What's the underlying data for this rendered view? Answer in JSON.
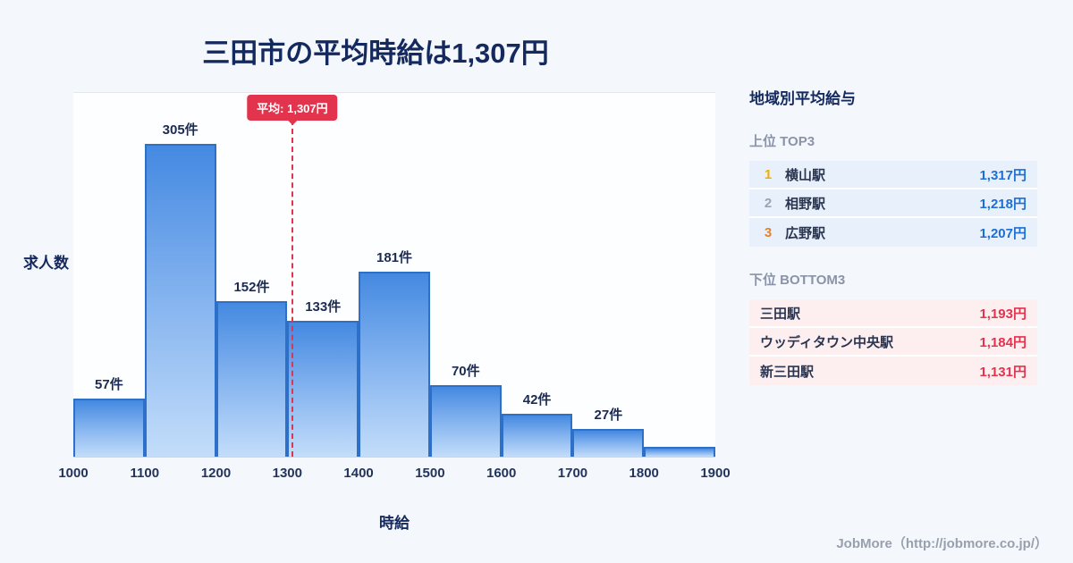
{
  "page": {
    "title": "三田市の平均時給は1,307円",
    "footer": "JobMore（http://jobmore.co.jp/）"
  },
  "chart_data": {
    "type": "bar",
    "title": "三田市の平均時給は1,307円",
    "xlabel": "時給",
    "ylabel": "求人数",
    "xlim": [
      1000,
      1900
    ],
    "ylim": [
      0,
      355
    ],
    "grid": false,
    "x_ticks": [
      1000,
      1100,
      1200,
      1300,
      1400,
      1500,
      1600,
      1700,
      1800,
      1900
    ],
    "categories": [
      "1000-1100",
      "1100-1200",
      "1200-1300",
      "1300-1400",
      "1400-1500",
      "1500-1600",
      "1600-1700",
      "1700-1800",
      "1800-1900"
    ],
    "values": [
      57,
      305,
      152,
      133,
      181,
      70,
      42,
      27,
      10
    ],
    "bar_labels": [
      "57件",
      "305件",
      "152件",
      "133件",
      "181件",
      "70件",
      "42件",
      "27件",
      ""
    ],
    "average": {
      "value": 1307,
      "label": "平均: 1,307円"
    },
    "colors": {
      "bar_top": "#4489e1",
      "bar_bottom": "#c3ddfa",
      "bar_border": "#2e6fc7",
      "average_line": "#e3344e"
    }
  },
  "sidebar": {
    "heading": "地域別平均給与",
    "top3": {
      "heading": "上位 TOP3",
      "rows": [
        {
          "rank": "1",
          "name": "横山駅",
          "value": "1,317円"
        },
        {
          "rank": "2",
          "name": "相野駅",
          "value": "1,218円"
        },
        {
          "rank": "3",
          "name": "広野駅",
          "value": "1,207円"
        }
      ]
    },
    "bottom3": {
      "heading": "下位 BOTTOM3",
      "rows": [
        {
          "name": "三田駅",
          "value": "1,193円"
        },
        {
          "name": "ウッディタウン中央駅",
          "value": "1,184円"
        },
        {
          "name": "新三田駅",
          "value": "1,131円"
        }
      ]
    }
  }
}
